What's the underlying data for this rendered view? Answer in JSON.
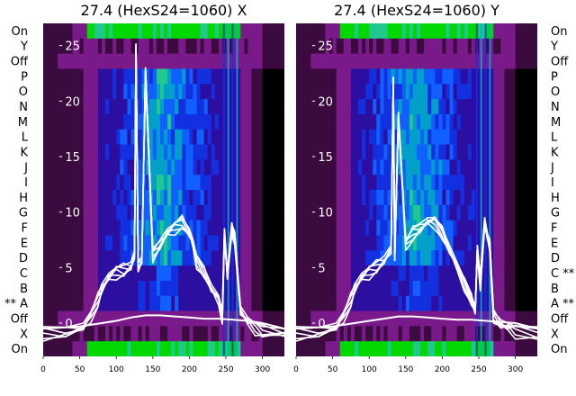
{
  "rows": [
    "On",
    "Y",
    "Off",
    "P",
    "O",
    "N",
    "M",
    "L",
    "K",
    "J",
    "I",
    "H",
    "G",
    "F",
    "E",
    "D",
    "C",
    "B",
    "A",
    "Off",
    "X",
    "On"
  ],
  "left_row_labels": [
    "On",
    "Y",
    "Off",
    "P",
    "O",
    "N",
    "M",
    "L",
    "K",
    "J",
    "I",
    "H",
    "G",
    "F",
    "E",
    "D",
    "C",
    "B",
    "** A",
    "Off",
    "X",
    "On"
  ],
  "right_row_labels": [
    "On",
    "Y",
    "Off",
    "P",
    "O",
    "N",
    "M",
    "L",
    "K",
    "J",
    "I",
    "H",
    "G",
    "F",
    "E",
    "D",
    "C **",
    "B",
    "A **",
    "Off",
    "X",
    "On"
  ],
  "colors": {
    "colormap": [
      "#000000",
      "#3b0a3f",
      "#7a1a8a",
      "#2c0fa0",
      "#1330e0",
      "#1060ff",
      "#00a0c8",
      "#20c890",
      "#00d800",
      "#60ff60"
    ],
    "trace": "#ffffff"
  },
  "chart_data": [
    {
      "type": "heatmap",
      "title": "27.4 (HexS24=1060) X",
      "x_ticks": [
        0,
        50,
        100,
        150,
        200,
        250,
        300
      ],
      "y_ticks": [
        0,
        5,
        10,
        15,
        20,
        25
      ],
      "xlim": [
        0,
        330
      ],
      "ylim": [
        -3,
        27
      ],
      "overlay_lines": [
        {
          "x": [
            0,
            30,
            55,
            65,
            75,
            80,
            90,
            100,
            110,
            120,
            125,
            127,
            130,
            135,
            140,
            150,
            160,
            170,
            180,
            190,
            200,
            205,
            210,
            220,
            230,
            240,
            245,
            248,
            252,
            258,
            262,
            270,
            280,
            290,
            300,
            330
          ],
          "y": [
            -0.5,
            -0.4,
            0,
            1,
            2.5,
            3.5,
            4.5,
            5,
            5.2,
            5.5,
            6.5,
            25,
            5.5,
            6,
            23,
            6.5,
            7.5,
            8.5,
            9,
            9.5,
            8.5,
            7.5,
            6,
            5,
            3.5,
            2.5,
            1,
            8.5,
            4.5,
            9,
            8,
            1.5,
            0.5,
            0,
            -0.3,
            -0.5
          ]
        },
        {
          "x": [
            0,
            50,
            80,
            100,
            120,
            140,
            160,
            180,
            200,
            220,
            240,
            260,
            280,
            300,
            330
          ],
          "y": [
            -0.5,
            -0.3,
            0,
            0.2,
            0.5,
            0.7,
            0.7,
            0.6,
            0.5,
            0.4,
            0.4,
            0.3,
            0.2,
            0,
            -0.5
          ]
        }
      ]
    },
    {
      "type": "heatmap",
      "title": "27.4 (HexS24=1060) Y",
      "x_ticks": [
        0,
        50,
        100,
        150,
        200,
        250,
        300
      ],
      "y_ticks": [
        0,
        5,
        10,
        15,
        20,
        25
      ],
      "xlim": [
        0,
        330
      ],
      "ylim": [
        -3,
        27
      ],
      "overlay_lines": [
        {
          "x": [
            0,
            30,
            55,
            65,
            75,
            80,
            90,
            100,
            110,
            120,
            130,
            133,
            135,
            140,
            150,
            160,
            170,
            180,
            190,
            200,
            210,
            220,
            230,
            240,
            245,
            248,
            252,
            258,
            262,
            265,
            270,
            280,
            290,
            300,
            330
          ],
          "y": [
            -0.5,
            -0.4,
            0,
            1,
            2.5,
            3.5,
            4.5,
            5,
            5.5,
            6,
            7,
            22,
            6.5,
            19,
            7.5,
            8.5,
            9,
            9.5,
            9.5,
            8.5,
            7,
            5.5,
            4,
            2.5,
            1.5,
            7,
            4,
            9.5,
            8,
            7.5,
            1,
            0.3,
            0,
            -0.3,
            -0.5
          ]
        },
        {
          "x": [
            0,
            50,
            80,
            100,
            120,
            140,
            160,
            180,
            200,
            220,
            240,
            260,
            280,
            300,
            330
          ],
          "y": [
            -0.5,
            -0.3,
            0,
            0.2,
            0.4,
            0.6,
            0.6,
            0.5,
            0.4,
            0.3,
            0.3,
            0.2,
            0.1,
            0,
            -0.5
          ]
        }
      ]
    }
  ]
}
